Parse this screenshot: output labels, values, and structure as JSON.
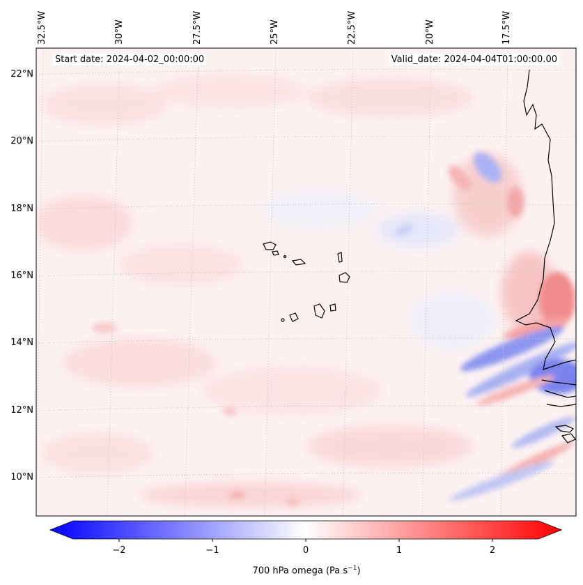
{
  "map": {
    "variable_label_prefix": "700 hPa omega (Pa s",
    "variable_label_exp": "−1",
    "variable_label_suffix": ")",
    "start_date": "Start date: 2024-04-02_00:00:00",
    "valid_date": "Valid_date: 2024-04-04T01:00:00.00",
    "lat_labels": [
      "22°N",
      "20°N",
      "18°N",
      "16°N",
      "14°N",
      "12°N",
      "10°N"
    ],
    "lon_labels": [
      "32.5°W",
      "30°W",
      "27.5°W",
      "25°W",
      "22.5°W",
      "20°W",
      "17.5°W"
    ],
    "colorbar": {
      "ticks": [
        "−2",
        "−1",
        "0",
        "1",
        "2"
      ],
      "range": [
        -2.6,
        2.6
      ],
      "colormap": "bwr",
      "extend": "both",
      "colors": {
        "negative": "#0000ff",
        "zero": "#ffffff",
        "positive": "#ff0000"
      }
    },
    "coastline_color": "#000000",
    "gridline_color": "#c8c8c8"
  }
}
